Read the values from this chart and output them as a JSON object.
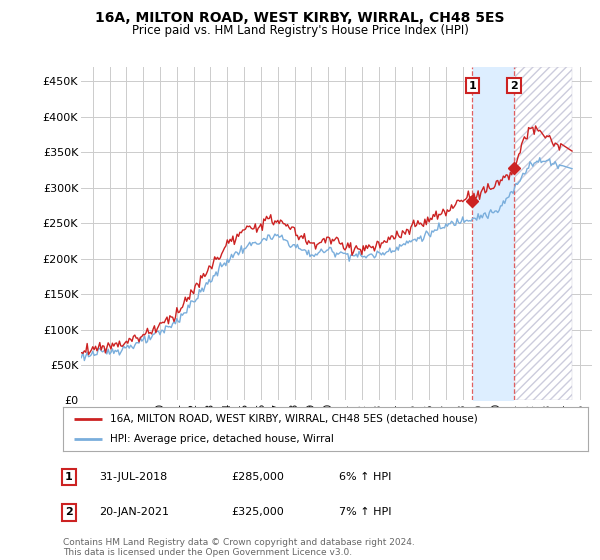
{
  "title": "16A, MILTON ROAD, WEST KIRBY, WIRRAL, CH48 5ES",
  "subtitle": "Price paid vs. HM Land Registry's House Price Index (HPI)",
  "ylabel_ticks": [
    "£0",
    "£50K",
    "£100K",
    "£150K",
    "£200K",
    "£250K",
    "£300K",
    "£350K",
    "£400K",
    "£450K"
  ],
  "ytick_values": [
    0,
    50000,
    100000,
    150000,
    200000,
    250000,
    300000,
    350000,
    400000,
    450000
  ],
  "ylim": [
    0,
    470000
  ],
  "xlim_start": 1995.3,
  "xlim_end": 2025.7,
  "background_color": "#ffffff",
  "plot_bg_color": "#ffffff",
  "grid_color": "#cccccc",
  "red_line_color": "#cc2222",
  "blue_line_color": "#7aaedc",
  "vline1_x": 2018.58,
  "vline2_x": 2021.05,
  "vline_color": "#dd4444",
  "shade_color": "#ddeeff",
  "hatch_color": "#ddddee",
  "dot_color": "#cc2222",
  "legend_entry1": "16A, MILTON ROAD, WEST KIRBY, WIRRAL, CH48 5ES (detached house)",
  "legend_entry2": "HPI: Average price, detached house, Wirral",
  "footer": "Contains HM Land Registry data © Crown copyright and database right 2024.\nThis data is licensed under the Open Government Licence v3.0.",
  "table_row1": [
    "1",
    "31-JUL-2018",
    "£285,000",
    "6% ↑ HPI"
  ],
  "table_row2": [
    "2",
    "20-JAN-2021",
    "£325,000",
    "7% ↑ HPI"
  ],
  "hpi_base": [
    62000,
    65000,
    69000,
    75000,
    83000,
    95000,
    112000,
    140000,
    170000,
    198000,
    215000,
    225000,
    232000,
    218000,
    205000,
    212000,
    207000,
    203000,
    206000,
    215000,
    225000,
    235000,
    246000,
    255000,
    260000,
    265000,
    295000,
    335000,
    338000,
    330000
  ],
  "red_base": [
    70000,
    73000,
    77000,
    83000,
    92000,
    106000,
    124000,
    155000,
    188000,
    220000,
    238000,
    250000,
    255000,
    238000,
    220000,
    228000,
    218000,
    213000,
    218000,
    230000,
    243000,
    255000,
    265000,
    285000,
    292000,
    305000,
    325000,
    385000,
    372000,
    355000
  ],
  "years": [
    1995,
    1996,
    1997,
    1998,
    1999,
    2000,
    2001,
    2002,
    2003,
    2004,
    2005,
    2006,
    2007,
    2008,
    2009,
    2010,
    2011,
    2012,
    2013,
    2014,
    2015,
    2016,
    2017,
    2018,
    2019,
    2020,
    2021,
    2022,
    2023,
    2024
  ]
}
